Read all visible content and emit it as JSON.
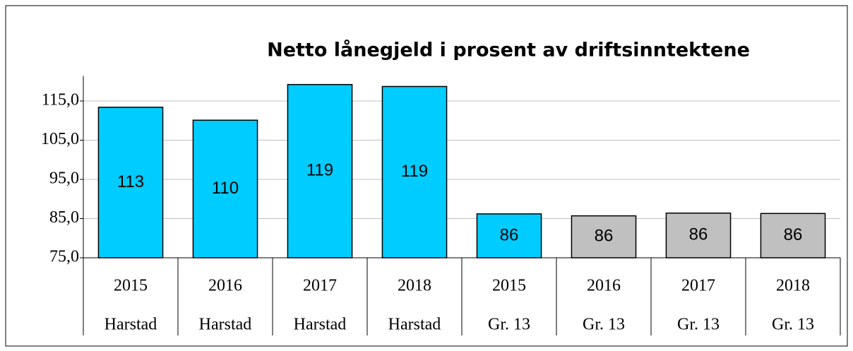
{
  "chart_data": {
    "type": "bar",
    "title": "Netto lånegjeld i prosent av driftsinntektene",
    "categories": [
      "2015",
      "2016",
      "2017",
      "2018",
      "2015",
      "2016",
      "2017",
      "2018"
    ],
    "groups": [
      "Harstad",
      "Harstad",
      "Harstad",
      "Harstad",
      "Gr. 13",
      "Gr. 13",
      "Gr. 13",
      "Gr. 13"
    ],
    "values": [
      113.4,
      110.1,
      119.2,
      118.7,
      86.2,
      85.7,
      86.4,
      86.3
    ],
    "value_labels": [
      "113",
      "110",
      "119",
      "119",
      "86",
      "86",
      "86",
      "86"
    ],
    "colors": [
      "#00ccff",
      "#00ccff",
      "#00ccff",
      "#00ccff",
      "#00ccff",
      "#c0c0c0",
      "#c0c0c0",
      "#c0c0c0"
    ],
    "ylim": [
      75,
      125
    ],
    "yticks": [
      {
        "value": 75,
        "label": "75,0"
      },
      {
        "value": 85,
        "label": "85,0"
      },
      {
        "value": 95,
        "label": "95,0"
      },
      {
        "value": 105,
        "label": "105,0"
      },
      {
        "value": 115,
        "label": "115,0"
      }
    ],
    "grid": true
  }
}
